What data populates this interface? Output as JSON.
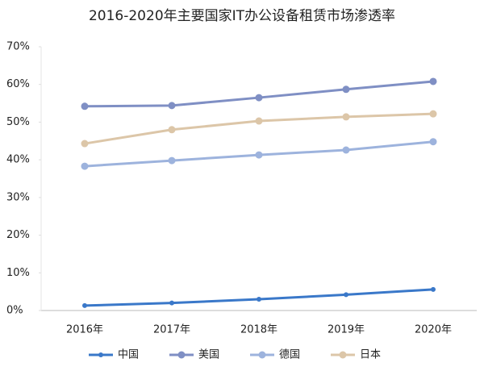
{
  "chart_data": {
    "type": "line",
    "title": "2016-2020年主要国家IT办公设备租赁市场渗透率",
    "categories": [
      "2016年",
      "2017年",
      "2018年",
      "2019年",
      "2020年"
    ],
    "series": [
      {
        "name": "中国",
        "color": "#3a78c9",
        "values": [
          1.3,
          2.0,
          3.0,
          4.2,
          5.6
        ]
      },
      {
        "name": "美国",
        "color": "#7f8fc4",
        "values": [
          54.2,
          54.4,
          56.5,
          58.7,
          60.8
        ]
      },
      {
        "name": "德国",
        "color": "#9db3dd",
        "values": [
          38.3,
          39.8,
          41.3,
          42.6,
          44.8
        ]
      },
      {
        "name": "日本",
        "color": "#dcc6a8",
        "values": [
          44.3,
          48.0,
          50.3,
          51.4,
          52.2
        ]
      }
    ],
    "ylim": [
      0,
      70
    ],
    "yticks": [
      {
        "value": 0,
        "label": "0%"
      },
      {
        "value": 10,
        "label": "10%"
      },
      {
        "value": 20,
        "label": "20%"
      },
      {
        "value": 30,
        "label": "30%"
      },
      {
        "value": 40,
        "label": "40%"
      },
      {
        "value": 50,
        "label": "50%"
      },
      {
        "value": 60,
        "label": "60%"
      },
      {
        "value": 70,
        "label": "70%"
      }
    ],
    "grid": false,
    "legend": "bottom"
  }
}
